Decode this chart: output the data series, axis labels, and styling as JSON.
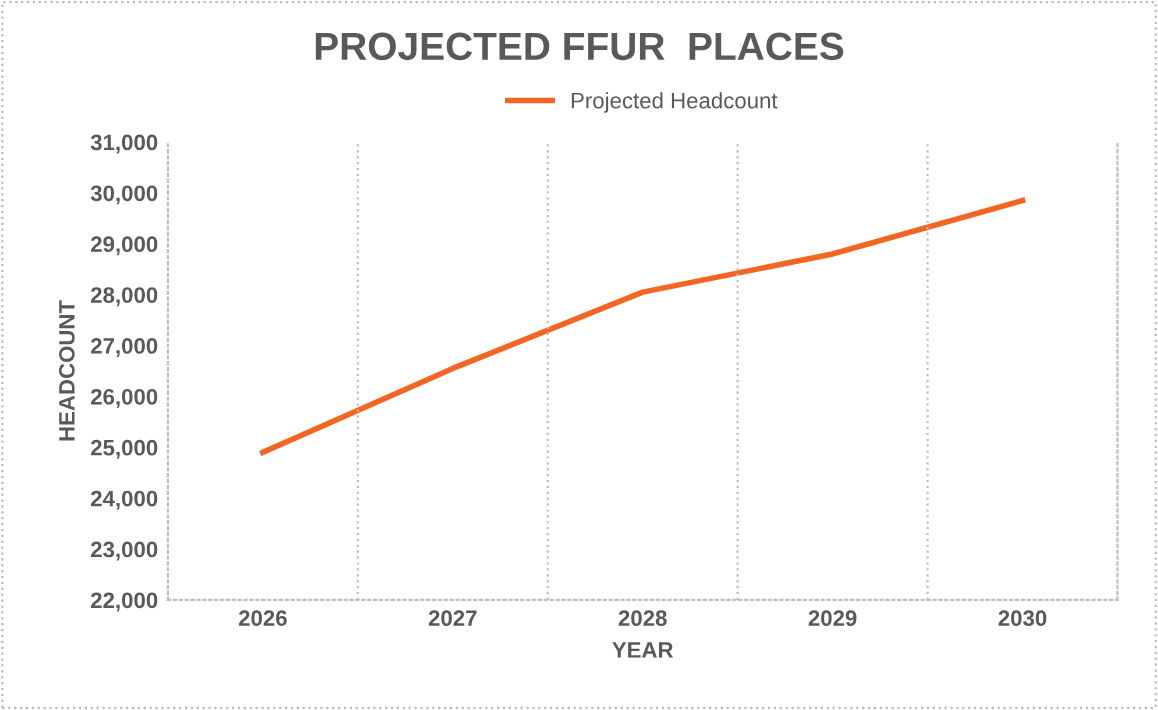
{
  "chart_data": {
    "type": "line",
    "title": "PROJECTED FFUR  PLACES",
    "xlabel": "YEAR",
    "ylabel": "HEADCOUNT",
    "categories": [
      "2026",
      "2027",
      "2028",
      "2029",
      "2030"
    ],
    "series": [
      {
        "name": "Projected Headcount",
        "color": "#f26522",
        "values": [
          24900,
          26550,
          28050,
          28800,
          29850
        ]
      }
    ],
    "ylim": [
      22000,
      31000
    ],
    "yticks": [
      {
        "value": 22000,
        "label": "22,000"
      },
      {
        "value": 23000,
        "label": "23,000"
      },
      {
        "value": 24000,
        "label": "24,000"
      },
      {
        "value": 25000,
        "label": "25,000"
      },
      {
        "value": 26000,
        "label": "26,000"
      },
      {
        "value": 27000,
        "label": "27,000"
      },
      {
        "value": 28000,
        "label": "28,000"
      },
      {
        "value": 29000,
        "label": "29,000"
      },
      {
        "value": 30000,
        "label": "30,000"
      },
      {
        "value": 31000,
        "label": "31,000"
      }
    ],
    "grid": "x",
    "legend": "top",
    "marker": "none",
    "line_style": "solid"
  }
}
